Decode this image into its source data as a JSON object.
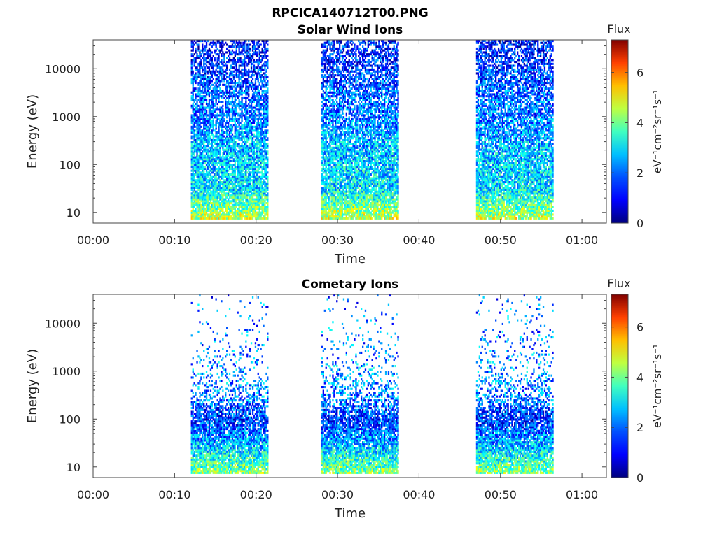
{
  "figure": {
    "filename_title": "RPCICA140712T00.PNG"
  },
  "colormap": {
    "name": "jet",
    "stops": [
      "#00007f",
      "#0000ff",
      "#007fff",
      "#00ffff",
      "#7fff7f",
      "#ffff00",
      "#ff7f00",
      "#ff0000",
      "#7f0000"
    ]
  },
  "chart_data": [
    {
      "type": "heatmap",
      "title": "Solar Wind Ions",
      "xlabel": "Time",
      "ylabel": "Energy (eV)",
      "xlim": [
        "00:00",
        "01:03"
      ],
      "x_ticks": [
        "00:00",
        "00:10",
        "00:20",
        "00:30",
        "00:40",
        "00:50",
        "01:00"
      ],
      "y_scale": "log",
      "ylim": [
        6,
        40000
      ],
      "y_ticks": [
        "10",
        "100",
        "1000",
        "10000"
      ],
      "colorbar": {
        "title": "Flux",
        "label": "eV⁻¹cm⁻²sr⁻¹s⁻¹",
        "range": [
          0,
          7.3
        ],
        "ticks": [
          "0",
          "2",
          "4",
          "6"
        ]
      },
      "data_intervals": [
        {
          "start": "00:12",
          "end": "00:21"
        },
        {
          "start": "00:28",
          "end": "00:37"
        },
        {
          "start": "00:47",
          "end": "00:56"
        }
      ],
      "flux_profile": {
        "energy": [
          10,
          30,
          100,
          300,
          1000,
          3000,
          10000,
          30000
        ],
        "typical_flux": [
          3.8,
          2.6,
          2.4,
          2.2,
          1.8,
          1.6,
          1.3,
          1.0
        ],
        "fill_fraction": [
          0.9,
          0.9,
          0.85,
          0.8,
          0.75,
          0.7,
          0.65,
          0.55
        ]
      }
    },
    {
      "type": "heatmap",
      "title": "Cometary Ions",
      "xlabel": "Time",
      "ylabel": "Energy (eV)",
      "xlim": [
        "00:00",
        "01:03"
      ],
      "x_ticks": [
        "00:00",
        "00:10",
        "00:20",
        "00:30",
        "00:40",
        "00:50",
        "01:00"
      ],
      "y_scale": "log",
      "ylim": [
        6,
        40000
      ],
      "y_ticks": [
        "10",
        "100",
        "1000",
        "10000"
      ],
      "colorbar": {
        "title": "Flux",
        "label": "eV⁻¹cm⁻²sr⁻¹s⁻¹",
        "range": [
          0,
          7.3
        ],
        "ticks": [
          "0",
          "2",
          "4",
          "6"
        ]
      },
      "data_intervals": [
        {
          "start": "00:12",
          "end": "00:21"
        },
        {
          "start": "00:28",
          "end": "00:37"
        },
        {
          "start": "00:47",
          "end": "00:56"
        }
      ],
      "flux_profile": {
        "energy": [
          10,
          30,
          100,
          300,
          1000,
          3000,
          10000,
          30000
        ],
        "typical_flux": [
          3.4,
          2.2,
          1.2,
          1.8,
          2.0,
          1.8,
          1.8,
          1.6
        ],
        "fill_fraction": [
          0.9,
          0.9,
          0.85,
          0.4,
          0.18,
          0.1,
          0.06,
          0.04
        ]
      }
    }
  ]
}
